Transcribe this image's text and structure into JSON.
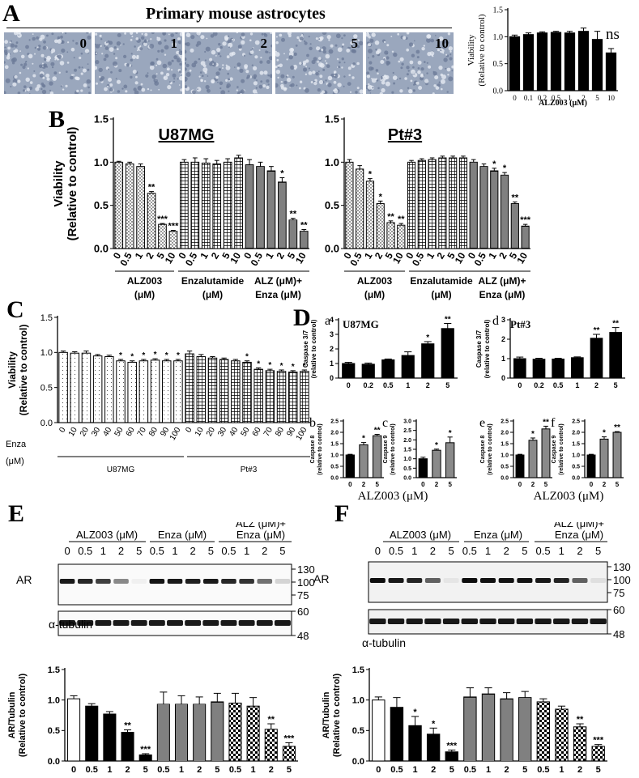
{
  "panel_letters": {
    "A": "A",
    "B": "B",
    "C": "C",
    "D": "D",
    "E": "E",
    "F": "F"
  },
  "panelA": {
    "title": "Primary mouse astrocytes",
    "image_labels": [
      "0",
      "1",
      "2",
      "5",
      "10"
    ],
    "ns": "ns"
  },
  "panelB": {
    "u87_title": "U87MG",
    "pt3_title": "Pt#3",
    "group_labels": {
      "alz": [
        "ALZ003",
        "(μM)"
      ],
      "enza": [
        "Enzalutamide",
        "(μM)"
      ],
      "combo": [
        "ALZ (μM)+",
        "Enza (μM)"
      ]
    }
  },
  "panelC": {
    "enza_label": "Enza",
    "unit_label": "(μM)",
    "group_labels": [
      "U87MG",
      "Pt#3"
    ]
  },
  "panelD": {
    "sub_letters": {
      "a": "a",
      "b": "b",
      "c": "c",
      "d": "d",
      "e": "e",
      "f": "f"
    },
    "u87_title": "U87MG",
    "pt3_title": "Pt#3",
    "xlabel": "ALZ003 (μM)"
  },
  "panelE": {
    "headers": {
      "alz": "ALZ003 (μM)",
      "enza": "Enza (μM)",
      "combo1": "ALZ (μM)+",
      "combo2": "Enza (μM)"
    },
    "lanes": [
      "0",
      "0.5",
      "1",
      "2",
      "5",
      "0.5",
      "1",
      "2",
      "5",
      "0.5",
      "1",
      "2",
      "5"
    ],
    "row_labels": {
      "ar": "AR",
      "tubulin": "α-tubulin"
    },
    "ar_markers": [
      "130",
      "100",
      "75"
    ],
    "tub_markers": [
      "60",
      "48"
    ]
  },
  "panelF": {
    "headers": {
      "alz": "ALZ003 (μM)",
      "enza": "Enza (μM)",
      "combo1": "ALZ (μM)+",
      "combo2": "Enza (μM)"
    },
    "lanes": [
      "0",
      "0.5",
      "1",
      "2",
      "5",
      "0.5",
      "1",
      "2",
      "5",
      "0.5",
      "1",
      "2",
      "5"
    ],
    "row_labels": {
      "ar": "AR",
      "tubulin": "α-tubulin"
    },
    "ar_markers": [
      "130",
      "100",
      "75"
    ],
    "tub_markers": [
      "60",
      "48"
    ]
  },
  "chart_data": [
    {
      "id": "A_viability",
      "type": "bar",
      "title": "",
      "xlabel": "ALZ003 (μM)",
      "ylabel": "Viability (Relative to control)",
      "categories": [
        "0",
        "0.1",
        "0.2",
        "0.5",
        "1",
        "2",
        "5",
        "10"
      ],
      "values": [
        1.0,
        1.04,
        1.07,
        1.08,
        1.07,
        1.1,
        0.95,
        0.7
      ],
      "errors": [
        0.03,
        0.03,
        0.02,
        0.02,
        0.03,
        0.06,
        0.15,
        0.08
      ],
      "sig": [
        "",
        "",
        "",
        "",
        "",
        "",
        "",
        ""
      ],
      "ylim": [
        0,
        1.5
      ],
      "yticks": [
        "0.0",
        "0.5",
        "1.0",
        "1.5"
      ]
    },
    {
      "id": "B_U87MG",
      "type": "bar",
      "title": "U87MG",
      "ylabel": "Viability (Relative to control)",
      "categories": [
        "0",
        "0.5",
        "1",
        "2",
        "5",
        "10",
        "0",
        "0.5",
        "1",
        "2",
        "5",
        "10",
        "0",
        "0.5",
        "1",
        "2",
        "5",
        "10"
      ],
      "values": [
        1.0,
        0.98,
        0.95,
        0.64,
        0.28,
        0.2,
        1.0,
        1.0,
        0.99,
        0.98,
        1.0,
        1.05,
        0.97,
        0.95,
        0.9,
        0.77,
        0.33,
        0.2
      ],
      "errors": [
        0.01,
        0.02,
        0.03,
        0.02,
        0.01,
        0.01,
        0.03,
        0.05,
        0.05,
        0.04,
        0.04,
        0.03,
        0.06,
        0.05,
        0.05,
        0.05,
        0.02,
        0.02
      ],
      "sig": [
        "",
        "",
        "",
        "**",
        "***",
        "***",
        "",
        "",
        "",
        "",
        "",
        "",
        "",
        "",
        "",
        "*",
        "**",
        "**"
      ],
      "ylim": [
        0,
        1.5
      ],
      "yticks": [
        "0.0",
        "0.5",
        "1.0",
        "1.5"
      ]
    },
    {
      "id": "B_Pt3",
      "type": "bar",
      "title": "Pt#3",
      "ylabel": "",
      "categories": [
        "0",
        "0.5",
        "1",
        "2",
        "5",
        "10",
        "0",
        "0.5",
        "1",
        "2",
        "5",
        "10",
        "0",
        "0.5",
        "1",
        "2",
        "5",
        "10"
      ],
      "values": [
        1.0,
        0.92,
        0.78,
        0.52,
        0.3,
        0.27,
        1.0,
        1.02,
        1.03,
        1.05,
        1.05,
        1.05,
        1.0,
        0.95,
        0.9,
        0.85,
        0.52,
        0.26
      ],
      "errors": [
        0.03,
        0.04,
        0.03,
        0.03,
        0.02,
        0.02,
        0.02,
        0.02,
        0.02,
        0.02,
        0.02,
        0.02,
        0.03,
        0.03,
        0.03,
        0.03,
        0.02,
        0.02
      ],
      "sig": [
        "",
        "",
        "*",
        "*",
        "**",
        "**",
        "",
        "",
        "",
        "",
        "",
        "",
        "",
        "",
        "*",
        "*",
        "**",
        "***"
      ],
      "ylim": [
        0,
        1.5
      ],
      "yticks": [
        "0.0",
        "0.5",
        "1.0",
        "1.5"
      ]
    },
    {
      "id": "C_enza",
      "type": "bar",
      "title": "",
      "ylabel": "Viability (Relative to control)",
      "categories": [
        "0",
        "10",
        "20",
        "30",
        "40",
        "50",
        "60",
        "70",
        "80",
        "90",
        "100",
        "0",
        "10",
        "20",
        "30",
        "40",
        "50",
        "60",
        "70",
        "80",
        "90",
        "100"
      ],
      "values": [
        1.0,
        0.99,
        0.99,
        0.95,
        0.94,
        0.88,
        0.86,
        0.88,
        0.89,
        0.88,
        0.88,
        0.98,
        0.94,
        0.92,
        0.9,
        0.88,
        0.86,
        0.76,
        0.74,
        0.73,
        0.72,
        0.73
      ],
      "errors": [
        0.02,
        0.02,
        0.03,
        0.02,
        0.02,
        0.02,
        0.02,
        0.02,
        0.02,
        0.02,
        0.02,
        0.04,
        0.03,
        0.02,
        0.02,
        0.02,
        0.02,
        0.02,
        0.02,
        0.02,
        0.02,
        0.02
      ],
      "sig": [
        "",
        "",
        "",
        "",
        "",
        "*",
        "*",
        "*",
        "*",
        "*",
        "*",
        "",
        "",
        "",
        "",
        "",
        "*",
        "*",
        "*",
        "*",
        "*",
        "*"
      ],
      "ylim": [
        0,
        1.5
      ],
      "yticks": [
        "0.0",
        "0.5",
        "1.0",
        "1.5"
      ]
    },
    {
      "id": "D_a",
      "type": "bar",
      "title": "U87MG",
      "ylabel": "Caspase 3/7 (relative to control)",
      "categories": [
        "0",
        "0.2",
        "0.5",
        "1",
        "2",
        "5"
      ],
      "values": [
        1.0,
        0.95,
        1.25,
        1.55,
        2.35,
        3.4
      ],
      "errors": [
        0.08,
        0.08,
        0.06,
        0.25,
        0.15,
        0.35
      ],
      "sig": [
        "",
        "",
        "",
        "",
        "*",
        "**"
      ],
      "ylim": [
        0,
        4
      ],
      "yticks": [
        "0",
        "1",
        "2",
        "3",
        "4"
      ]
    },
    {
      "id": "D_b",
      "type": "bar",
      "title": "",
      "ylabel": "Caspase 8 (relative to control)",
      "categories": [
        "0",
        "2",
        "5"
      ],
      "values": [
        1.0,
        1.45,
        1.85
      ],
      "errors": [
        0.03,
        0.1,
        0.06
      ],
      "sig": [
        "",
        "*",
        "**"
      ],
      "ylim": [
        0,
        2.5
      ],
      "yticks": [
        "0.0",
        "0.5",
        "1.0",
        "1.5",
        "2.0",
        "2.5"
      ]
    },
    {
      "id": "D_c",
      "type": "bar",
      "title": "",
      "ylabel": "Caspase 9 (relative to control)",
      "categories": [
        "0",
        "2",
        "5"
      ],
      "values": [
        1.0,
        1.45,
        1.85
      ],
      "errors": [
        0.08,
        0.06,
        0.3
      ],
      "sig": [
        "",
        "*",
        "*"
      ],
      "ylim": [
        0,
        3
      ],
      "yticks": [
        "0.0",
        "0.5",
        "1.0",
        "1.5",
        "2.0",
        "2.5",
        "3.0"
      ]
    },
    {
      "id": "D_d",
      "type": "bar",
      "title": "Pt#3",
      "ylabel": "Caspase 3/7 (relative to control)",
      "categories": [
        "0",
        "0.2",
        "0.5",
        "1",
        "2",
        "5"
      ],
      "values": [
        1.0,
        0.97,
        0.98,
        1.05,
        2.05,
        2.35
      ],
      "errors": [
        0.08,
        0.05,
        0.04,
        0.04,
        0.2,
        0.25
      ],
      "sig": [
        "",
        "",
        "",
        "",
        "**",
        "**"
      ],
      "ylim": [
        0,
        3
      ],
      "yticks": [
        "0",
        "1",
        "2",
        "3"
      ]
    },
    {
      "id": "D_e",
      "type": "bar",
      "title": "",
      "ylabel": "Caspase 8 (relative to control)",
      "categories": [
        "0",
        "2",
        "5"
      ],
      "values": [
        1.0,
        1.65,
        2.15
      ],
      "errors": [
        0.03,
        0.1,
        0.12
      ],
      "sig": [
        "",
        "*",
        "**"
      ],
      "ylim": [
        0,
        2.5
      ],
      "yticks": [
        "0.0",
        "0.5",
        "1.0",
        "1.5",
        "2.0",
        "2.5"
      ]
    },
    {
      "id": "D_f",
      "type": "bar",
      "title": "",
      "ylabel": "Caspase 9 (relative to control)",
      "categories": [
        "0",
        "2",
        "5"
      ],
      "values": [
        1.0,
        1.7,
        2.0
      ],
      "errors": [
        0.03,
        0.1,
        0.03
      ],
      "sig": [
        "",
        "*",
        "**"
      ],
      "ylim": [
        0,
        2.5
      ],
      "yticks": [
        "0.0",
        "0.5",
        "1.0",
        "1.5",
        "2.0",
        "2.5"
      ]
    },
    {
      "id": "E_quant",
      "type": "bar",
      "title": "",
      "ylabel": "AR/Tubulin (Relative to control)",
      "categories": [
        "0",
        "0.5",
        "1",
        "2",
        "5",
        "0.5",
        "1",
        "2",
        "5",
        "0.5",
        "1",
        "2",
        "5"
      ],
      "values": [
        1.02,
        0.9,
        0.77,
        0.47,
        0.1,
        0.93,
        0.93,
        0.93,
        0.97,
        0.95,
        0.9,
        0.52,
        0.24
      ],
      "errors": [
        0.05,
        0.04,
        0.04,
        0.04,
        0.02,
        0.2,
        0.14,
        0.12,
        0.14,
        0.16,
        0.14,
        0.09,
        0.06
      ],
      "sig": [
        "",
        "",
        "",
        "**",
        "***",
        "",
        "",
        "",
        "",
        "",
        "",
        "**",
        "***"
      ],
      "ylim": [
        0,
        1.5
      ],
      "yticks": [
        "0.0",
        "0.5",
        "1.0",
        "1.5"
      ]
    },
    {
      "id": "F_quant",
      "type": "bar",
      "title": "",
      "ylabel": "AR/Tubulin (Relative to control)",
      "categories": [
        "0",
        "0.5",
        "1",
        "2",
        "5",
        "0.5",
        "1",
        "2",
        "5",
        "0.5",
        "1",
        "2",
        "5"
      ],
      "values": [
        1.0,
        0.88,
        0.58,
        0.44,
        0.15,
        1.05,
        1.1,
        1.02,
        1.04,
        0.97,
        0.85,
        0.56,
        0.24
      ],
      "errors": [
        0.05,
        0.16,
        0.15,
        0.1,
        0.03,
        0.15,
        0.1,
        0.1,
        0.1,
        0.05,
        0.05,
        0.05,
        0.03
      ],
      "sig": [
        "",
        "",
        "*",
        "*",
        "***",
        "",
        "",
        "",
        "",
        "",
        "",
        "**",
        "***"
      ],
      "ylim": [
        0,
        1.5
      ],
      "yticks": [
        "0.0",
        "0.5",
        "1.0",
        "1.5"
      ]
    }
  ]
}
